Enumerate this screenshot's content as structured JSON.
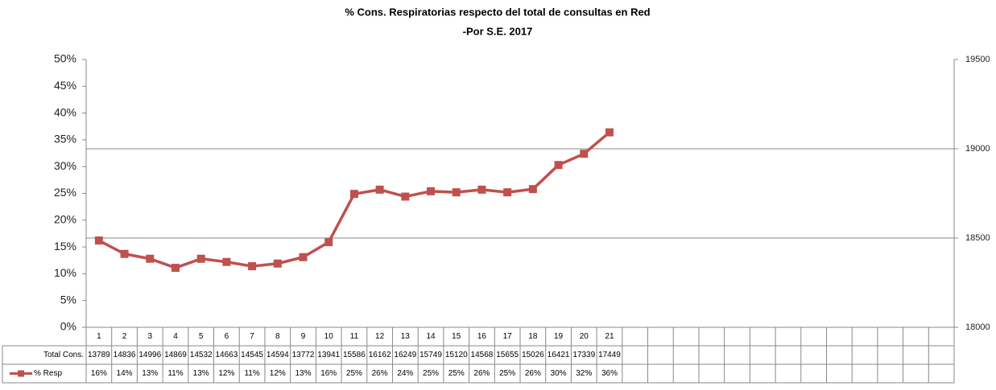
{
  "chart_data": {
    "type": "line",
    "title": "% Cons. Respiratorias respecto del total de consultas en Red",
    "subtitle": "-Por S.E. 2017",
    "categories": [
      "1",
      "2",
      "3",
      "4",
      "5",
      "6",
      "7",
      "8",
      "9",
      "10",
      "11",
      "12",
      "13",
      "14",
      "15",
      "16",
      "17",
      "18",
      "19",
      "20",
      "21",
      null,
      null,
      null,
      null,
      null,
      null,
      null,
      null,
      null,
      null,
      null,
      null,
      null
    ],
    "series": [
      {
        "name": "Total Cons.",
        "values": [
          13789,
          14836,
          14996,
          14869,
          14532,
          14663,
          14545,
          14594,
          13772,
          13941,
          15586,
          16162,
          16249,
          15749,
          15120,
          14568,
          15655,
          15026,
          16421,
          17339,
          17449,
          null,
          null,
          null,
          null,
          null,
          null,
          null,
          null,
          null,
          null,
          null,
          null,
          null
        ]
      },
      {
        "name": "% Resp",
        "color": "#c0504d",
        "values": [
          16.2,
          13.7,
          12.8,
          11.1,
          12.8,
          12.2,
          11.4,
          11.9,
          13.1,
          15.9,
          24.9,
          25.7,
          24.4,
          25.4,
          25.2,
          25.7,
          25.2,
          25.8,
          30.3,
          32.4,
          36.4,
          null,
          null,
          null,
          null,
          null,
          null,
          null,
          null,
          null,
          null,
          null,
          null,
          null
        ],
        "value_labels": [
          "16%",
          "14%",
          "13%",
          "11%",
          "13%",
          "12%",
          "11%",
          "12%",
          "13%",
          "16%",
          "25%",
          "26%",
          "24%",
          "25%",
          "25%",
          "26%",
          "25%",
          "26%",
          "30%",
          "32%",
          "36%",
          null,
          null,
          null,
          null,
          null,
          null,
          null,
          null,
          null,
          null,
          null,
          null,
          null
        ]
      }
    ],
    "ylim": [
      0,
      50
    ],
    "yticks": [
      {
        "value": 0,
        "label": "0%"
      },
      {
        "value": 5,
        "label": "5%"
      },
      {
        "value": 10,
        "label": "10%"
      },
      {
        "value": 15,
        "label": "15%"
      },
      {
        "value": 20,
        "label": "20%"
      },
      {
        "value": 25,
        "label": "25%"
      },
      {
        "value": 30,
        "label": "30%"
      },
      {
        "value": 35,
        "label": "35%"
      },
      {
        "value": 40,
        "label": "40%"
      },
      {
        "value": 45,
        "label": "45%"
      },
      {
        "value": 50,
        "label": "50%"
      }
    ],
    "y2lim": [
      18000,
      19500
    ],
    "y2ticks": [
      18000,
      18500,
      19000,
      19500
    ],
    "grid": "y2"
  }
}
